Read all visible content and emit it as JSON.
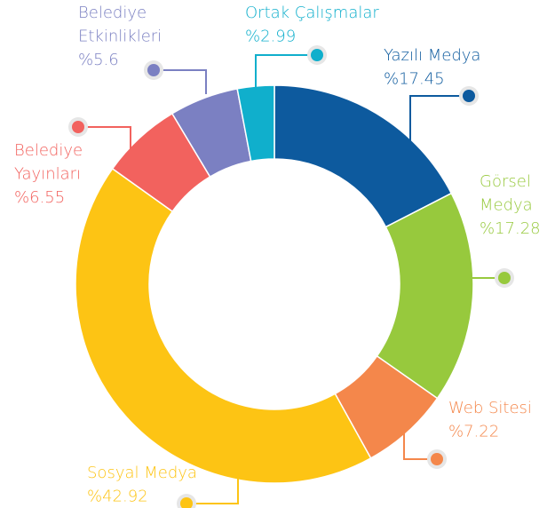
{
  "chart_data": {
    "type": "donut",
    "categories": [
      "Yazılı Medya",
      "Görsel Medya",
      "Web Sitesi",
      "Sosyal Medya",
      "Belediye Yayınları",
      "Belediye Etkinlikleri",
      "Ortak Çalışmalar"
    ],
    "values": [
      17.45,
      17.28,
      7.22,
      42.92,
      6.55,
      5.6,
      2.99
    ],
    "value_labels": [
      "%17.45",
      "%17.28",
      "%7.22",
      "%42.92",
      "%6.55",
      "%5.6",
      "%2.99"
    ],
    "colors": [
      "#0d5a9e",
      "#97c93d",
      "#f4874b",
      "#fdc414",
      "#f2625e",
      "#7b80c2",
      "#10afcc"
    ]
  }
}
